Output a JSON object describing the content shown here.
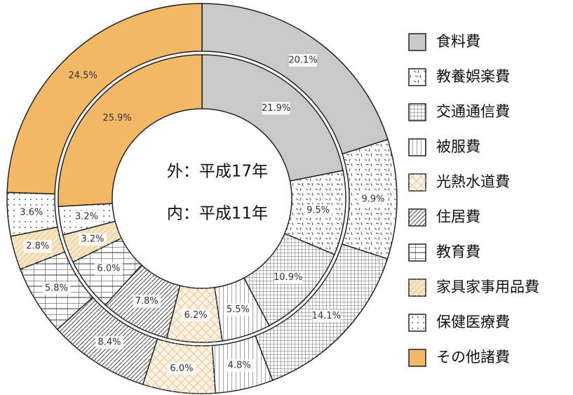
{
  "chart_data": {
    "type": "donut",
    "categories": [
      "食料費",
      "教養娯楽費",
      "交通通信費",
      "被服費",
      "光熱水道費",
      "住居費",
      "教育費",
      "家具家事用品費",
      "保健医療費",
      "その他諸費"
    ],
    "colors": [
      "#c9c9c9",
      "#ffffff",
      "#ffffff",
      "#ffffff",
      "#fbf3e3",
      "#ffffff",
      "#ffffff",
      "#f7e6c4",
      "#ffffff",
      "#f3b866"
    ],
    "series": [
      {
        "label": "外：平成17年",
        "values": [
          20.1,
          9.9,
          14.1,
          4.8,
          6.0,
          8.4,
          5.8,
          2.8,
          3.6,
          24.5
        ],
        "value_labels": [
          "20.1%",
          "9.9%",
          "14.1%",
          "4.8%",
          "6.0%",
          "8.4%",
          "5.8%",
          "2.8%",
          "3.6%",
          "24.5%"
        ]
      },
      {
        "label": "内：平成11年",
        "values": [
          21.9,
          9.5,
          10.9,
          5.5,
          6.2,
          7.8,
          6.0,
          3.2,
          3.2,
          25.9
        ],
        "value_labels": [
          "21.9%",
          "9.5%",
          "10.9%",
          "5.5%",
          "6.2%",
          "7.8%",
          "6.0%",
          "3.2%",
          "3.2%",
          "25.9%"
        ]
      }
    ]
  }
}
